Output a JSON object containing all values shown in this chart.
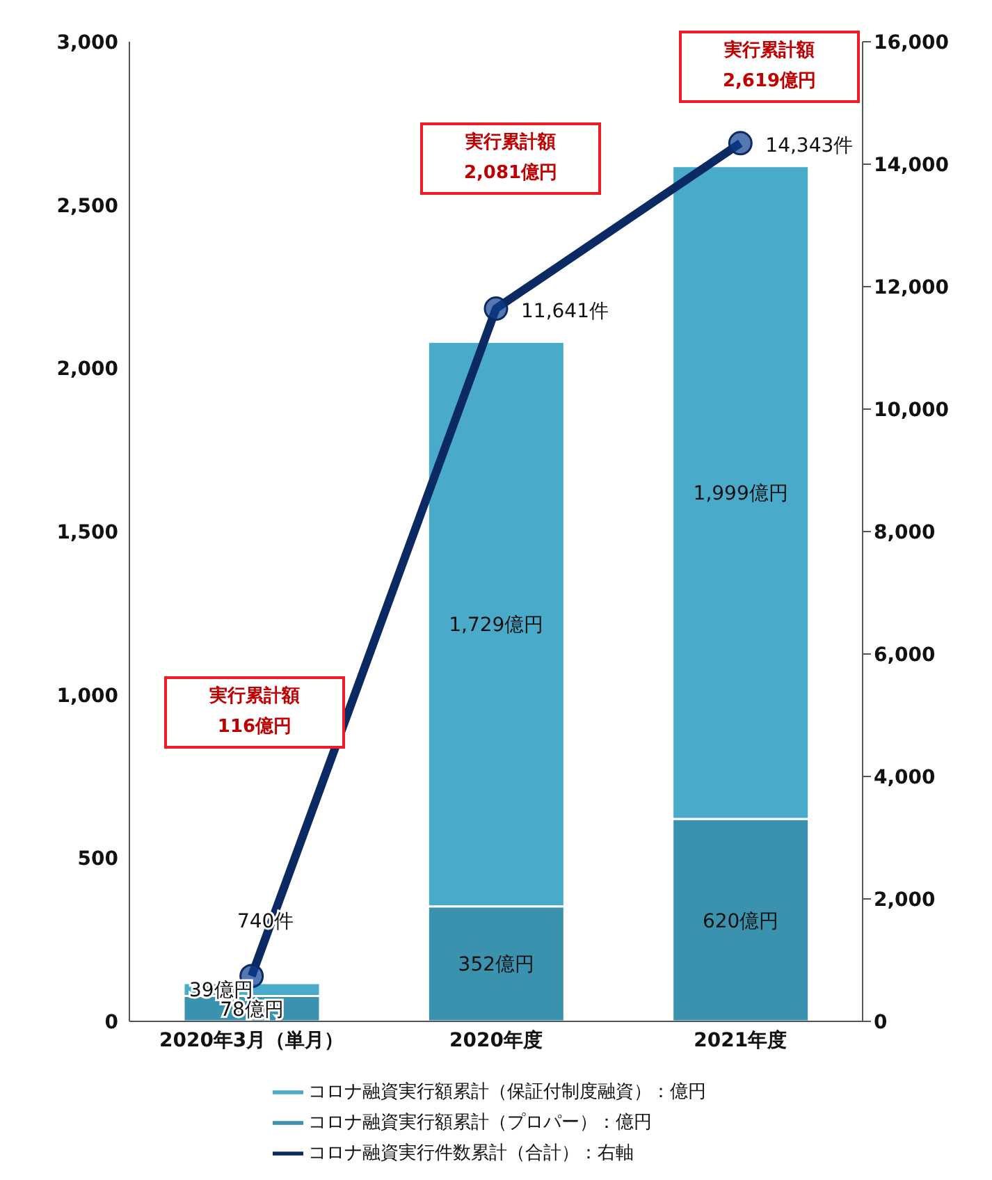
{
  "chart_data": {
    "type": "bar",
    "stacked": true,
    "categories": [
      "2020年3月（単月）",
      "2020年度",
      "2021年度"
    ],
    "series": [
      {
        "name": "コロナ融資実行額累計（プロパー）：億円",
        "color": "#3a92ae",
        "values": [
          78,
          352,
          620
        ],
        "value_labels": [
          "78億円",
          "352億円",
          "620億円"
        ]
      },
      {
        "name": "コロナ融資実行額累計（保証付制度融資）：億円",
        "color": "#4aaac9",
        "values": [
          39,
          1729,
          1999
        ],
        "value_labels": [
          "39億円",
          "1,729億円",
          "1,999億円"
        ]
      },
      {
        "name": "コロナ融資実行件数累計（合計）：右軸",
        "type": "line",
        "axis": "y2",
        "color": "#0b2a63",
        "values": [
          740,
          11641,
          14343
        ],
        "value_labels": [
          "740件",
          "11,641件",
          "14,343件"
        ]
      }
    ],
    "ylim": [
      0,
      3000
    ],
    "yticks": [
      {
        "value": 0,
        "label": "0"
      },
      {
        "value": 500,
        "label": "500"
      },
      {
        "value": 1000,
        "label": "1,000"
      },
      {
        "value": 1500,
        "label": "1,500"
      },
      {
        "value": 2000,
        "label": "2,000"
      },
      {
        "value": 2500,
        "label": "2,500"
      },
      {
        "value": 3000,
        "label": "3,000"
      }
    ],
    "y2lim": [
      0,
      16000
    ],
    "y2ticks": [
      {
        "value": 0,
        "label": "0"
      },
      {
        "value": 2000,
        "label": "2,000"
      },
      {
        "value": 4000,
        "label": "4,000"
      },
      {
        "value": 6000,
        "label": "6,000"
      },
      {
        "value": 8000,
        "label": "8,000"
      },
      {
        "value": 10000,
        "label": "10,000"
      },
      {
        "value": 12000,
        "label": "12,000"
      },
      {
        "value": 14000,
        "label": "14,000"
      },
      {
        "value": 16000,
        "label": "16,000"
      }
    ],
    "annotations": [
      "実行累計額\n116億円",
      "実行累計額\n2,081億円",
      "実行累計額\n2,619億円"
    ],
    "marker": "circle",
    "grid": false,
    "legend": "bottom"
  }
}
